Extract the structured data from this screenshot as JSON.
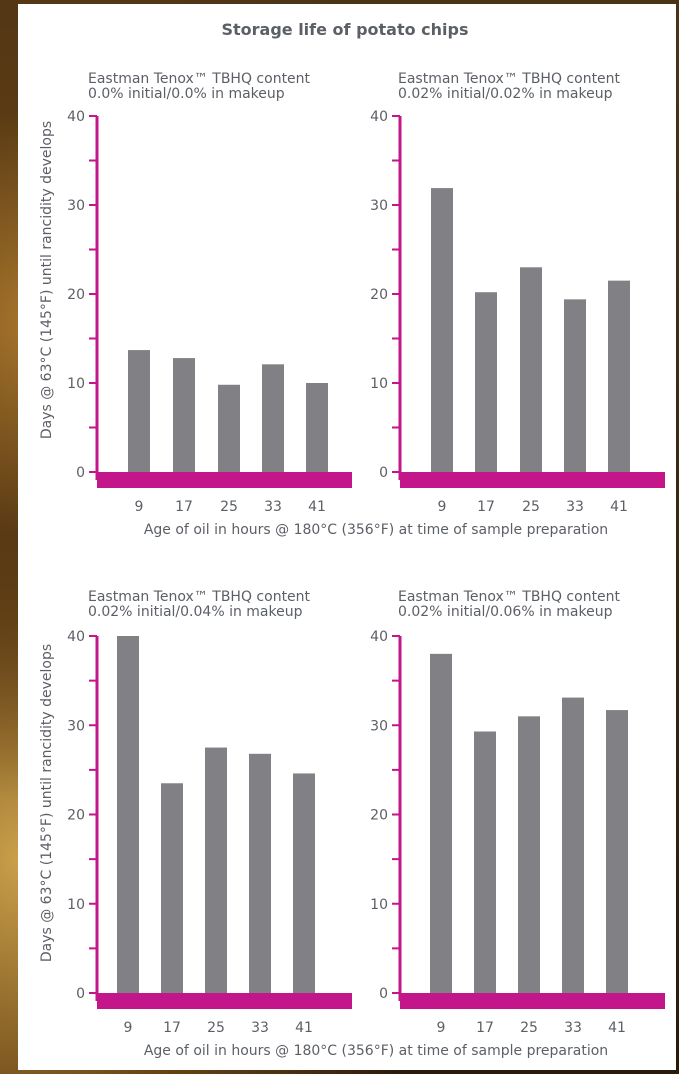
{
  "title": "Storage life of potato chips",
  "ylabel": "Days @ 63°C (145°F) until rancidity develops",
  "xlabel": "Age of oil in hours @ 180°C (356°F) at time of sample preparation",
  "colors": {
    "bar": "#818185",
    "axis": "#c4168b",
    "text": "#5b5f66"
  },
  "chart_data": [
    {
      "type": "bar",
      "subtitle_line1": "Eastman Tenox™ TBHQ content",
      "subtitle_line2": "0.0% initial/0.0% in makeup",
      "categories": [
        "9",
        "17",
        "25",
        "33",
        "41"
      ],
      "values": [
        13.7,
        12.8,
        9.8,
        12.1,
        10.0
      ],
      "ylim": [
        0,
        40
      ],
      "yticks": [
        0,
        10,
        20,
        30,
        40
      ],
      "xlabel": "Age of oil in hours @ 180°C (356°F) at time of sample preparation",
      "ylabel": "Days @ 63°C (145°F) until rancidity develops"
    },
    {
      "type": "bar",
      "subtitle_line1": "Eastman Tenox™ TBHQ content",
      "subtitle_line2": "0.02% initial/0.02% in makeup",
      "categories": [
        "9",
        "17",
        "25",
        "33",
        "41"
      ],
      "values": [
        31.9,
        20.2,
        23.0,
        19.4,
        21.5
      ],
      "ylim": [
        0,
        40
      ],
      "yticks": [
        0,
        10,
        20,
        30,
        40
      ],
      "xlabel": "Age of oil in hours @ 180°C (356°F) at time of sample preparation",
      "ylabel": ""
    },
    {
      "type": "bar",
      "subtitle_line1": "Eastman Tenox™ TBHQ content",
      "subtitle_line2": "0.02% initial/0.04% in makeup",
      "categories": [
        "9",
        "17",
        "25",
        "33",
        "41"
      ],
      "values": [
        40.0,
        23.5,
        27.5,
        26.8,
        24.6
      ],
      "ylim": [
        0,
        40
      ],
      "yticks": [
        0,
        10,
        20,
        30,
        40
      ],
      "xlabel": "Age of oil in hours @ 180°C (356°F) at time of sample preparation",
      "ylabel": "Days @ 63°C (145°F) until rancidity develops"
    },
    {
      "type": "bar",
      "subtitle_line1": "Eastman Tenox™ TBHQ content",
      "subtitle_line2": "0.02% initial/0.06% in makeup",
      "categories": [
        "9",
        "17",
        "25",
        "33",
        "41"
      ],
      "values": [
        38.0,
        29.3,
        31.0,
        33.1,
        31.7
      ],
      "ylim": [
        0,
        40
      ],
      "yticks": [
        0,
        10,
        20,
        30,
        40
      ],
      "xlabel": "Age of oil in hours @ 180°C (356°F) at time of sample preparation",
      "ylabel": ""
    }
  ]
}
